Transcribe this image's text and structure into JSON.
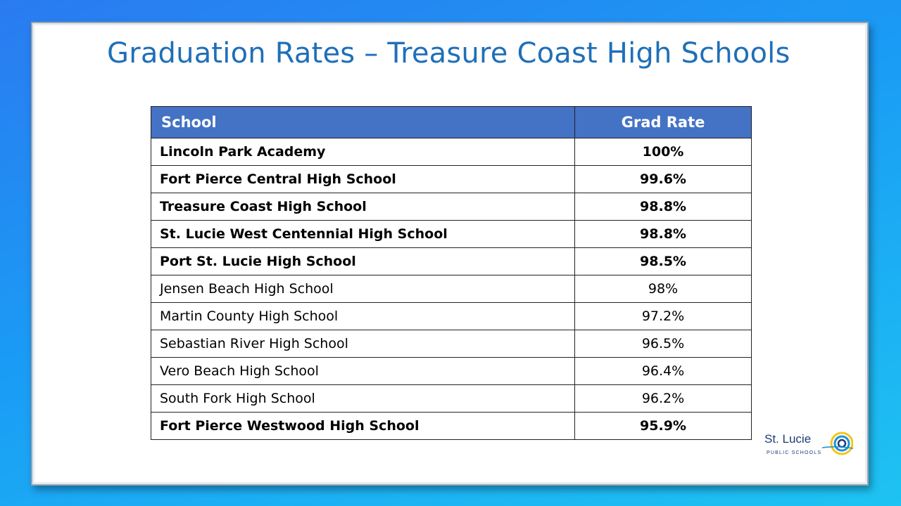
{
  "slide": {
    "title": "Graduation Rates – Treasure Coast High Schools"
  },
  "table": {
    "headers": {
      "school": "School",
      "rate": "Grad  Rate"
    },
    "rows": [
      {
        "school": "Lincoln Park Academy",
        "rate": "100%",
        "bold": true
      },
      {
        "school": "Fort Pierce Central High School",
        "rate": "99.6%",
        "bold": true
      },
      {
        "school": "Treasure Coast High School",
        "rate": "98.8%",
        "bold": true
      },
      {
        "school": "St. Lucie West Centennial High School",
        "rate": "98.8%",
        "bold": true
      },
      {
        "school": "Port St. Lucie High School",
        "rate": "98.5%",
        "bold": true
      },
      {
        "school": "Jensen Beach High School",
        "rate": "98%",
        "bold": false
      },
      {
        "school": "Martin County High School",
        "rate": "97.2%",
        "bold": false
      },
      {
        "school": "Sebastian River High School",
        "rate": "96.5%",
        "bold": false
      },
      {
        "school": "Vero Beach High School",
        "rate": "96.4%",
        "bold": false
      },
      {
        "school": "South Fork High School",
        "rate": "96.2%",
        "bold": false
      },
      {
        "school": "Fort Pierce Westwood High School",
        "rate": "95.9%",
        "bold": true
      }
    ]
  },
  "logo": {
    "name": "St. Lucie",
    "subtitle": "PUBLIC SCHOOLS",
    "icon": "sun-ripple-logo-icon",
    "colors": {
      "navy": "#1a3c78",
      "blue": "#1e8fd5",
      "yellow": "#f4c518"
    }
  },
  "colors": {
    "title": "#1f6fb8",
    "header_fill": "#4472c4",
    "background_top": "#2a7bf0",
    "background_bottom": "#1ec3f2"
  }
}
